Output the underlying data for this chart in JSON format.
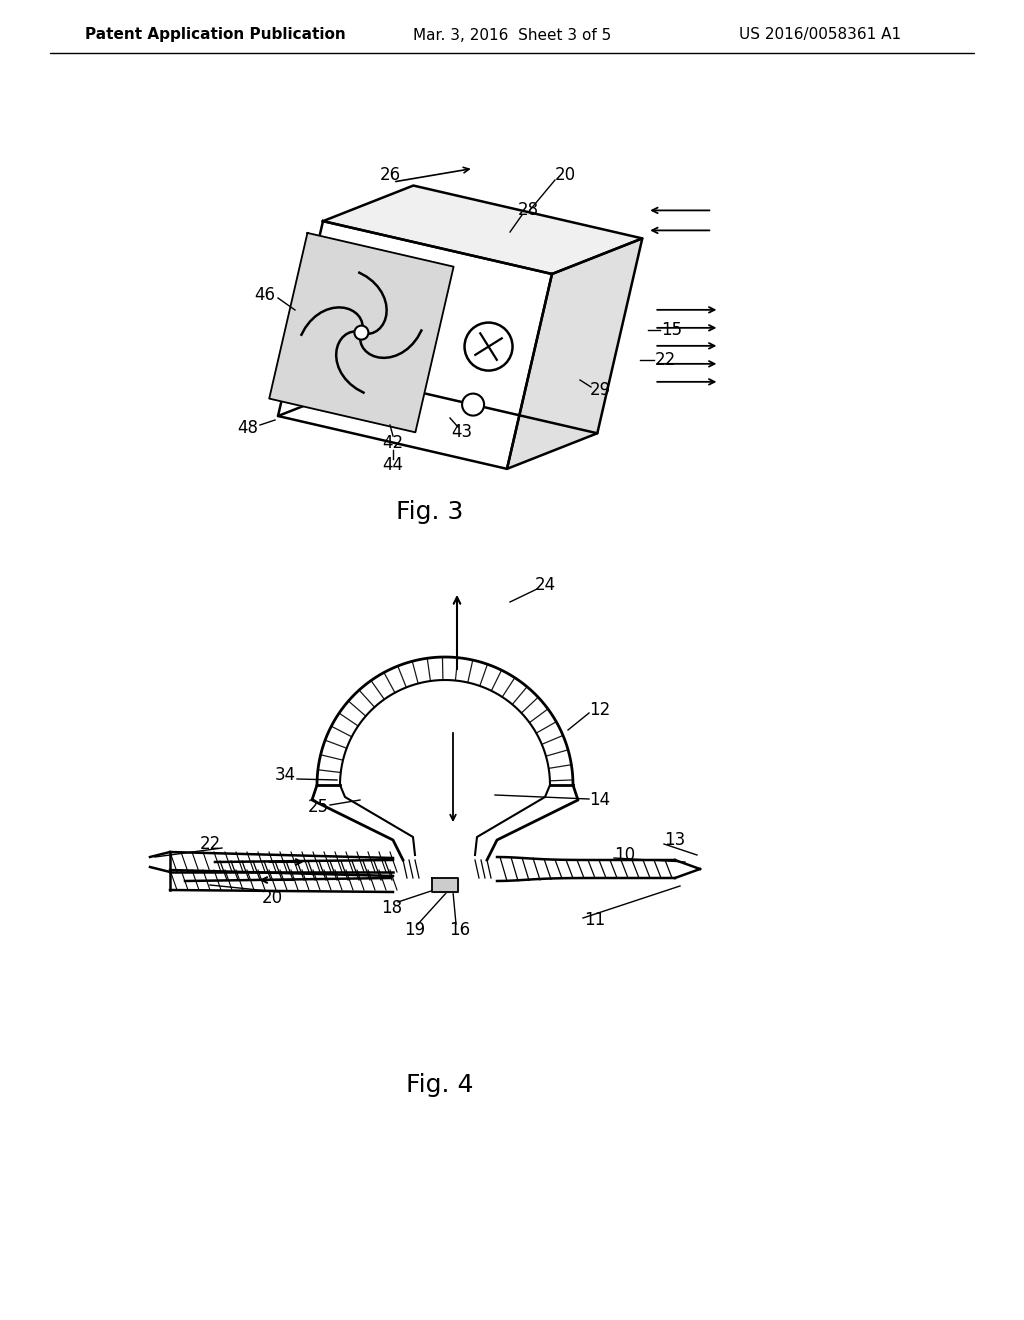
{
  "bg_color": "#ffffff",
  "line_color": "#000000",
  "header_left": "Patent Application Publication",
  "header_mid": "Mar. 3, 2016  Sheet 3 of 5",
  "header_right": "US 2016/0058361 A1",
  "fig3_label": "Fig. 3",
  "fig4_label": "Fig. 4"
}
